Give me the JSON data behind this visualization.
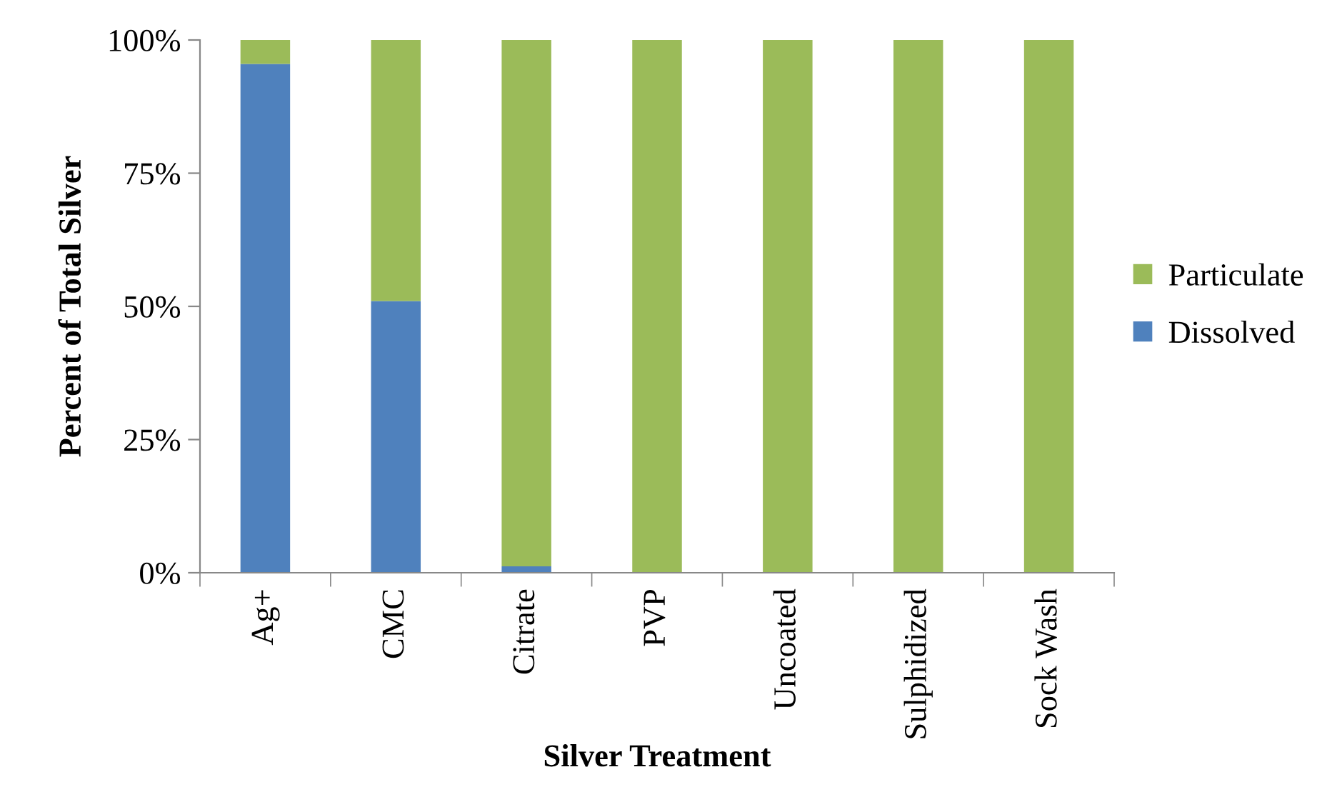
{
  "chart_data": {
    "type": "bar",
    "stacked": true,
    "xlabel": "Silver Treatment",
    "ylabel": "Percent of Total Silver",
    "categories": [
      "Ag+",
      "CMC",
      "Citrate",
      "PVP",
      "Uncoated",
      "Sulphidized",
      "Sock Wash"
    ],
    "series": [
      {
        "name": "Dissolved",
        "color": "#4f81bd",
        "values": [
          95.5,
          51,
          1.2,
          0,
          0,
          0,
          0
        ]
      },
      {
        "name": "Particulate",
        "color": "#9bbb59",
        "values": [
          4.5,
          49,
          98.8,
          100,
          100,
          100,
          100
        ]
      }
    ],
    "ylim": [
      0,
      100
    ],
    "yticks": [
      {
        "value": 0,
        "label": "0%"
      },
      {
        "value": 25,
        "label": "25%"
      },
      {
        "value": 50,
        "label": "50%"
      },
      {
        "value": 75,
        "label": "75%"
      },
      {
        "value": 100,
        "label": "100%"
      }
    ],
    "grid": false,
    "legend": "right"
  }
}
